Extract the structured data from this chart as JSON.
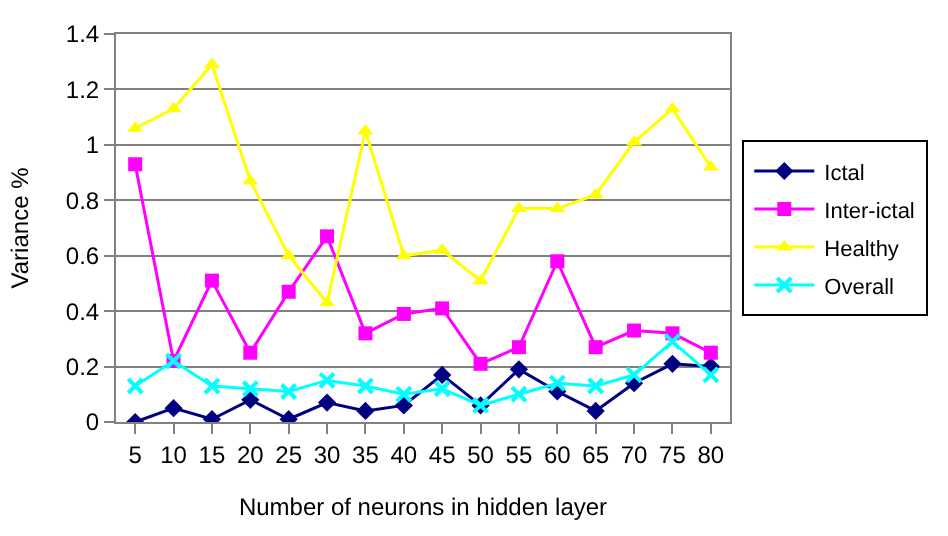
{
  "chart_data": {
    "type": "line",
    "xlabel": "Number of neurons in hidden layer",
    "ylabel": "Variance %",
    "categories": [
      "5",
      "10",
      "15",
      "20",
      "25",
      "30",
      "35",
      "40",
      "45",
      "50",
      "55",
      "60",
      "65",
      "70",
      "75",
      "80"
    ],
    "series": [
      {
        "name": "Ictal",
        "color": "#000080",
        "marker": "diamond",
        "values": [
          0,
          0.05,
          0.01,
          0.08,
          0.01,
          0.07,
          0.04,
          0.06,
          0.17,
          0.06,
          0.19,
          0.11,
          0.04,
          0.14,
          0.21,
          0.2
        ]
      },
      {
        "name": "Inter-ictal",
        "color": "#ff00ff",
        "marker": "square",
        "values": [
          0.93,
          0.22,
          0.51,
          0.25,
          0.47,
          0.67,
          0.32,
          0.39,
          0.41,
          0.21,
          0.27,
          0.58,
          0.27,
          0.33,
          0.32,
          0.25
        ]
      },
      {
        "name": "Healthy",
        "color": "#ffff00",
        "marker": "triangle",
        "values": [
          1.06,
          1.13,
          1.29,
          0.87,
          0.6,
          0.43,
          1.05,
          0.6,
          0.62,
          0.51,
          0.77,
          0.77,
          0.82,
          1.01,
          1.13,
          0.92
        ]
      },
      {
        "name": "Overall",
        "color": "#00ffff",
        "marker": "cross",
        "values": [
          0.13,
          0.22,
          0.13,
          0.12,
          0.11,
          0.15,
          0.13,
          0.1,
          0.12,
          0.06,
          0.1,
          0.14,
          0.13,
          0.17,
          0.29,
          0.17
        ]
      }
    ],
    "ylim": [
      0,
      1.4
    ],
    "yticks": [
      0,
      0.2,
      0.4,
      0.6,
      0.8,
      1,
      1.2,
      1.4
    ],
    "grid": "y",
    "legend": "right",
    "line_style": "solid"
  }
}
